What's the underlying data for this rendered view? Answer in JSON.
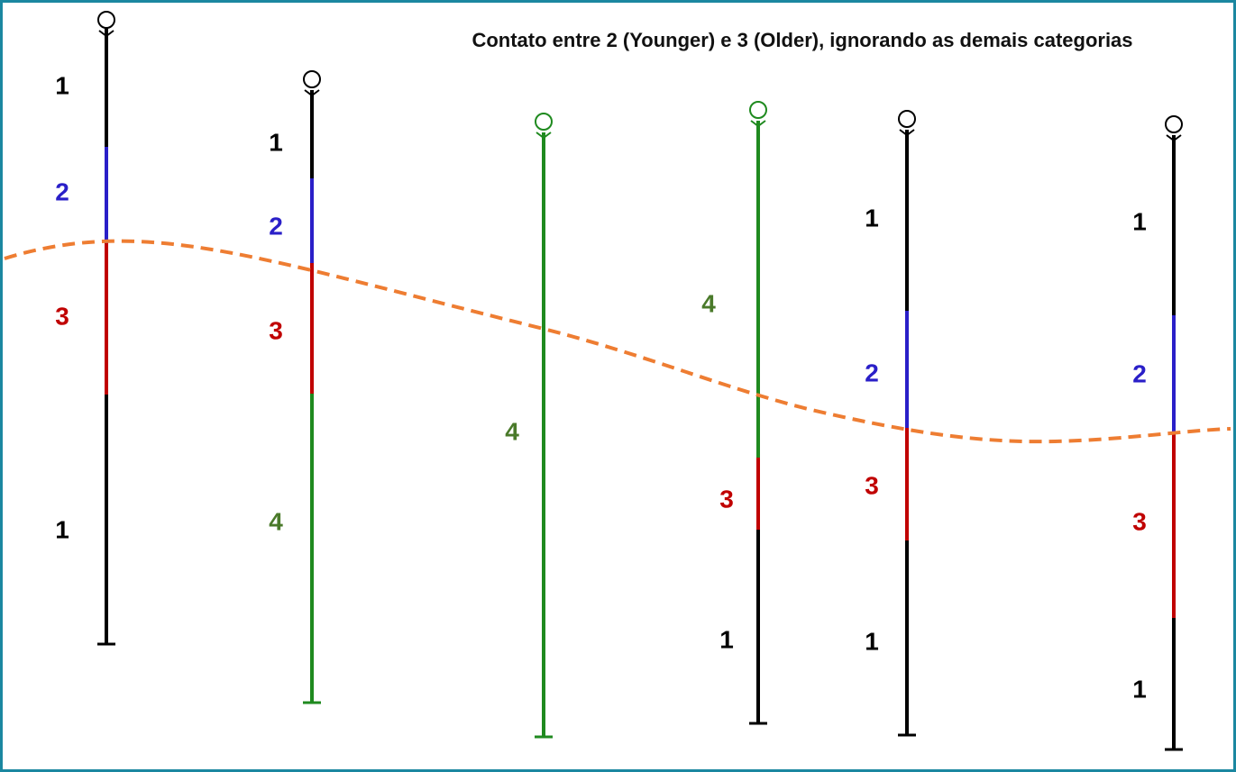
{
  "title": "Contato entre 2 (Younger) e 3 (Older), ignorando as demais categorias",
  "wells": [
    {
      "labels": [
        "1",
        "2",
        "3",
        "1"
      ]
    },
    {
      "labels": [
        "1",
        "2",
        "3",
        "4"
      ]
    },
    {
      "labels": [
        "4"
      ]
    },
    {
      "labels": [
        "4",
        "3",
        "1"
      ]
    },
    {
      "labels": [
        "1",
        "2",
        "3",
        "1"
      ]
    },
    {
      "labels": [
        "1",
        "2",
        "3",
        "1"
      ]
    }
  ]
}
